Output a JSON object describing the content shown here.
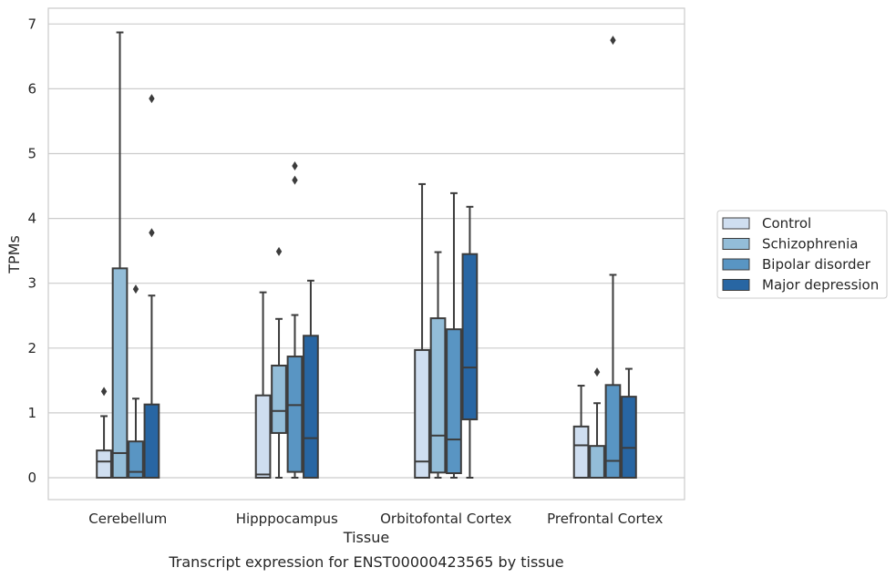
{
  "chart_data": {
    "type": "box",
    "title": "",
    "caption": "Transcript expression for ENST00000423565 by tissue",
    "xlabel": "Tissue",
    "ylabel": "TPMs",
    "ylim": [
      -0.33,
      7.22
    ],
    "yticks": [
      0,
      1,
      2,
      3,
      4,
      5,
      6,
      7
    ],
    "grid": "horizontal",
    "legend_position": "right",
    "categories": [
      "Cerebellum",
      "Hipppocampus",
      "Orbitofontal Cortex",
      "Prefrontal Cortex"
    ],
    "series": [
      {
        "name": "Control",
        "color": "#cfdef0",
        "boxes": [
          {
            "whislo": 0.0,
            "q1": 0.0,
            "med": 0.25,
            "q3": 0.42,
            "whishi": 0.95,
            "fliers": [
              1.33
            ]
          },
          {
            "whislo": 0.0,
            "q1": 0.0,
            "med": 0.05,
            "q3": 1.27,
            "whishi": 2.86,
            "fliers": []
          },
          {
            "whislo": 0.0,
            "q1": 0.0,
            "med": 0.25,
            "q3": 1.97,
            "whishi": 4.53,
            "fliers": []
          },
          {
            "whislo": 0.0,
            "q1": 0.0,
            "med": 0.5,
            "q3": 0.79,
            "whishi": 1.42,
            "fliers": []
          }
        ]
      },
      {
        "name": "Schizophrenia",
        "color": "#93bdd8",
        "boxes": [
          {
            "whislo": 0.0,
            "q1": 0.0,
            "med": 0.38,
            "q3": 3.23,
            "whishi": 6.87,
            "fliers": []
          },
          {
            "whislo": 0.0,
            "q1": 0.69,
            "med": 1.03,
            "q3": 1.73,
            "whishi": 2.45,
            "fliers": [
              3.49
            ]
          },
          {
            "whislo": 0.0,
            "q1": 0.08,
            "med": 0.65,
            "q3": 2.46,
            "whishi": 3.48,
            "fliers": []
          },
          {
            "whislo": 0.0,
            "q1": 0.0,
            "med": 0.0,
            "q3": 0.49,
            "whishi": 1.15,
            "fliers": [
              1.63
            ]
          }
        ]
      },
      {
        "name": "Bipolar disorder",
        "color": "#5995c3",
        "boxes": [
          {
            "whislo": 0.0,
            "q1": 0.0,
            "med": 0.09,
            "q3": 0.56,
            "whishi": 1.22,
            "fliers": [
              2.91
            ]
          },
          {
            "whislo": 0.0,
            "q1": 0.09,
            "med": 1.12,
            "q3": 1.87,
            "whishi": 2.51,
            "fliers": [
              4.59,
              4.81
            ]
          },
          {
            "whislo": 0.0,
            "q1": 0.07,
            "med": 0.59,
            "q3": 2.29,
            "whishi": 4.39,
            "fliers": []
          },
          {
            "whislo": 0.0,
            "q1": 0.0,
            "med": 0.26,
            "q3": 1.43,
            "whishi": 3.13,
            "fliers": [
              6.75
            ]
          }
        ]
      },
      {
        "name": "Major depression",
        "color": "#2866a3",
        "boxes": [
          {
            "whislo": 0.0,
            "q1": 0.0,
            "med": 0.0,
            "q3": 1.13,
            "whishi": 2.81,
            "fliers": [
              3.78,
              5.85
            ]
          },
          {
            "whislo": 0.0,
            "q1": 0.0,
            "med": 0.61,
            "q3": 2.19,
            "whishi": 3.04,
            "fliers": []
          },
          {
            "whislo": 0.0,
            "q1": 0.9,
            "med": 1.7,
            "q3": 3.45,
            "whishi": 4.18,
            "fliers": []
          },
          {
            "whislo": 0.0,
            "q1": 0.0,
            "med": 0.46,
            "q3": 1.25,
            "whishi": 1.68,
            "fliers": []
          }
        ]
      }
    ]
  }
}
